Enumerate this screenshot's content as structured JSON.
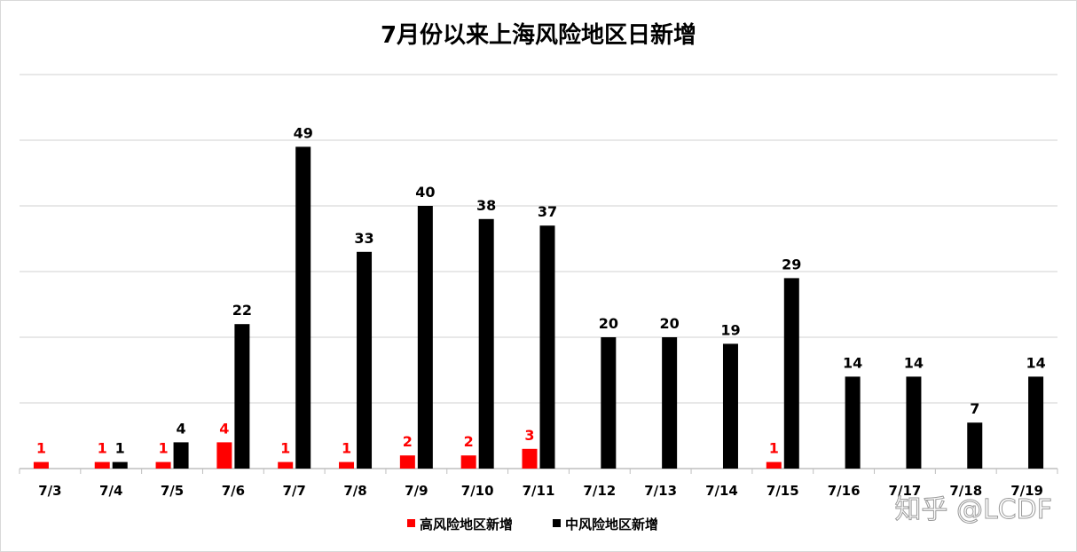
{
  "chart_data": {
    "type": "bar",
    "title": "7月份以来上海风险地区日新增",
    "categories": [
      "7/3",
      "7/4",
      "7/5",
      "7/6",
      "7/7",
      "7/8",
      "7/9",
      "7/10",
      "7/11",
      "7/12",
      "7/13",
      "7/14",
      "7/15",
      "7/16",
      "7/17",
      "7/18",
      "7/19"
    ],
    "series": [
      {
        "name": "高风险地区新增",
        "color": "#ff0000",
        "values": [
          1,
          1,
          1,
          4,
          1,
          1,
          2,
          2,
          3,
          null,
          null,
          null,
          1,
          null,
          null,
          null,
          null
        ]
      },
      {
        "name": "中风险地区新增",
        "color": "#000000",
        "values": [
          null,
          1,
          4,
          22,
          49,
          33,
          40,
          38,
          37,
          20,
          20,
          19,
          29,
          14,
          14,
          7,
          14
        ]
      }
    ],
    "ylim": [
      0,
      60
    ],
    "gridlines": [
      0,
      10,
      20,
      30,
      40,
      50,
      60
    ],
    "grid": true,
    "y_tick_labels_visible": false,
    "legend_position": "bottom-center"
  },
  "watermark": "知乎 @LCDF"
}
